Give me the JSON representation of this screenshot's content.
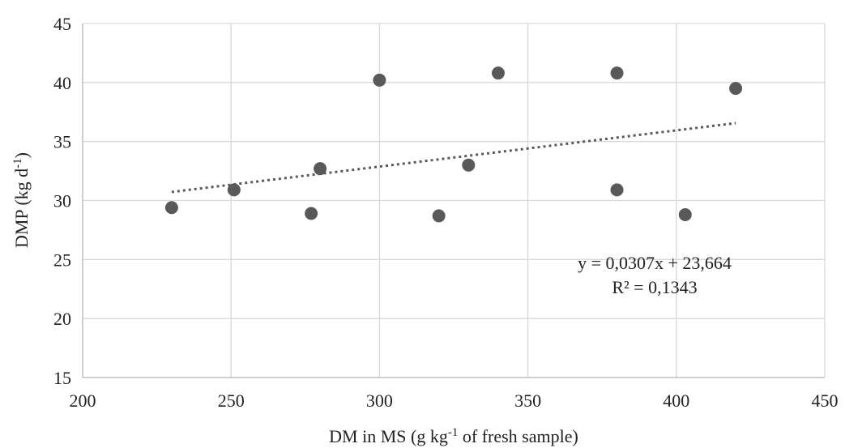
{
  "chart_data": {
    "type": "scatter",
    "xlabel": {
      "pre": "DM in MS (g kg",
      "sup": "-1",
      "post": " of fresh sample)"
    },
    "ylabel": {
      "pre": "DMP (kg d",
      "sup": "-1",
      "post": ")"
    },
    "xlim": [
      200,
      450
    ],
    "ylim": [
      15,
      45
    ],
    "xticks": [
      200,
      250,
      300,
      350,
      400,
      450
    ],
    "yticks": [
      15,
      20,
      25,
      30,
      35,
      40,
      45
    ],
    "grid": true,
    "points": [
      {
        "x": 230,
        "y": 29.4
      },
      {
        "x": 251,
        "y": 30.9
      },
      {
        "x": 277,
        "y": 28.9
      },
      {
        "x": 280,
        "y": 32.7
      },
      {
        "x": 300,
        "y": 40.2
      },
      {
        "x": 320,
        "y": 28.7
      },
      {
        "x": 330,
        "y": 33.0
      },
      {
        "x": 340,
        "y": 40.8
      },
      {
        "x": 380,
        "y": 40.8
      },
      {
        "x": 380,
        "y": 30.9
      },
      {
        "x": 403,
        "y": 28.8
      },
      {
        "x": 420,
        "y": 39.5
      }
    ],
    "trendline": {
      "type": "linear",
      "slope": 0.0307,
      "intercept": 23.664,
      "x_range": [
        230,
        420
      ],
      "equation": "y = 0,0307x + 23,664",
      "r2": "R² = 0,1343"
    },
    "colors": {
      "point": "#595959",
      "trendline": "#595959",
      "grid": "#d9d9d9",
      "axis": "#bfbfbf"
    }
  }
}
